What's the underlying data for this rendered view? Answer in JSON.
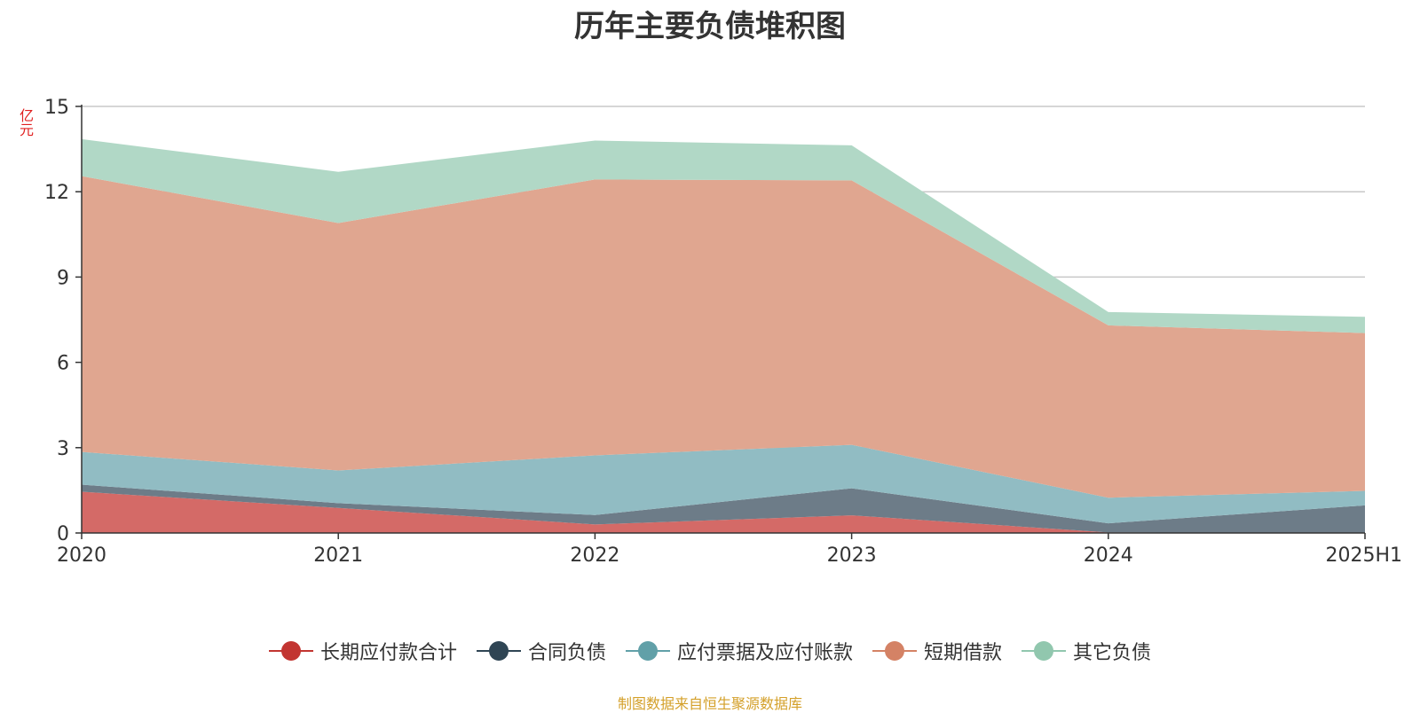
{
  "chart_data": {
    "type": "area",
    "stacked": true,
    "title": "历年主要负债堆积图",
    "unit_label": "亿元",
    "categories": [
      "2020",
      "2021",
      "2022",
      "2023",
      "2024",
      "2025H1"
    ],
    "yticks": [
      "0",
      "3",
      "6",
      "9",
      "12",
      "15"
    ],
    "ylim": [
      0,
      15
    ],
    "grid": true,
    "legend_position": "bottom",
    "series": [
      {
        "name": "长期应付款合计",
        "color": "#c23531",
        "fill": "#d46a67",
        "values": [
          1.45,
          0.88,
          0.3,
          0.62,
          0.02,
          0.0
        ]
      },
      {
        "name": "合同负债",
        "color": "#2f4554",
        "fill": "#6d7c88",
        "values": [
          0.25,
          0.17,
          0.33,
          0.95,
          0.32,
          0.97
        ]
      },
      {
        "name": "应付票据及应付账款",
        "color": "#61a0a8",
        "fill": "#91bcc3",
        "values": [
          1.15,
          1.15,
          2.1,
          1.53,
          0.9,
          0.51
        ]
      },
      {
        "name": "短期借款",
        "color": "#d48265",
        "fill": "#e0a690",
        "values": [
          9.7,
          8.7,
          9.7,
          9.3,
          6.06,
          5.55
        ]
      },
      {
        "name": "其它负债",
        "color": "#91c7ae",
        "fill": "#b1d8c6",
        "values": [
          1.3,
          1.8,
          1.37,
          1.23,
          0.47,
          0.57
        ]
      }
    ]
  },
  "footer": "制图数据来自恒生聚源数据库"
}
